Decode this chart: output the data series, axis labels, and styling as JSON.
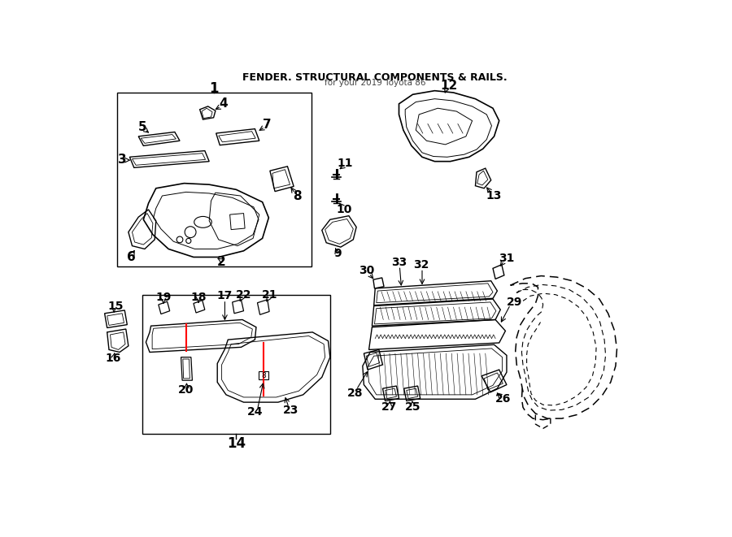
{
  "bg": "#ffffff",
  "lc": "#000000",
  "rc": "#ff0000",
  "fw": 9.0,
  "fh": 6.61,
  "dpi": 100
}
